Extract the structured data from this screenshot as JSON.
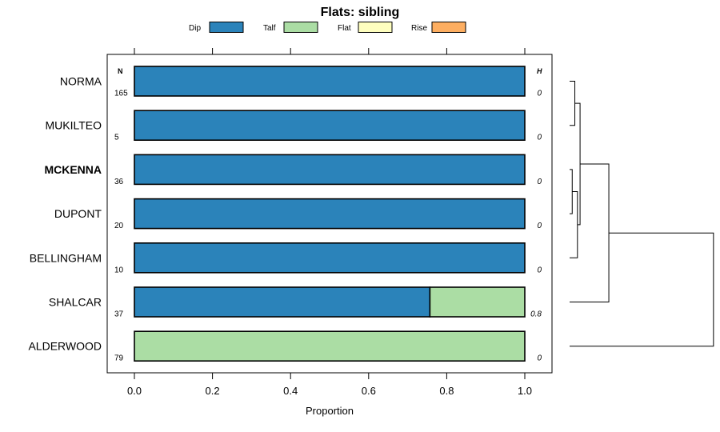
{
  "chart_data": {
    "type": "bar",
    "orientation": "horizontal",
    "stacked": true,
    "title": "Flats: sibling",
    "xlabel": "Proportion",
    "ylabel": "",
    "xlim": [
      0,
      1
    ],
    "xticks": [
      "0.0",
      "0.2",
      "0.4",
      "0.6",
      "0.8",
      "1.0"
    ],
    "legend_position": "top",
    "n_header": "N",
    "h_header": "H",
    "categories": [
      "NORMA",
      "MUKILTEO",
      "MCKENNA",
      "DUPONT",
      "BELLINGHAM",
      "SHALCAR",
      "ALDERWOOD"
    ],
    "highlighted_category": "MCKENNA",
    "n_values": [
      "165",
      "5",
      "36",
      "20",
      "10",
      "37",
      "79"
    ],
    "h_values": [
      "0",
      "0",
      "0",
      "0",
      "0",
      "0.8",
      "0"
    ],
    "series": [
      {
        "name": "Dip",
        "color": "#2b83ba",
        "values": [
          1,
          1,
          1,
          1,
          1,
          0.757,
          0
        ]
      },
      {
        "name": "Talf",
        "color": "#abdda4",
        "values": [
          0,
          0,
          0,
          0,
          0,
          0.243,
          1
        ]
      },
      {
        "name": "Flat",
        "color": "#ffffbf",
        "values": [
          0,
          0,
          0,
          0,
          0,
          0,
          0
        ]
      },
      {
        "name": "Rise",
        "color": "#fdae61",
        "values": [
          0,
          0,
          0,
          0,
          0,
          0,
          0
        ]
      }
    ],
    "dendrogram": {
      "merges": [
        {
          "left": "NORMA",
          "right": "MUKILTEO",
          "height": 0.02
        },
        {
          "left": "MCKENNA",
          "right": "DUPONT",
          "height": 0.01
        },
        {
          "left": "#2",
          "right": "BELLINGHAM",
          "height": 0.03
        },
        {
          "left": "#1",
          "right": "#3",
          "height": 0.04
        },
        {
          "left": "#4",
          "right": "SHALCAR",
          "height": 0.15
        },
        {
          "left": "#5",
          "right": "ALDERWOOD",
          "height": 0.55
        }
      ]
    }
  }
}
